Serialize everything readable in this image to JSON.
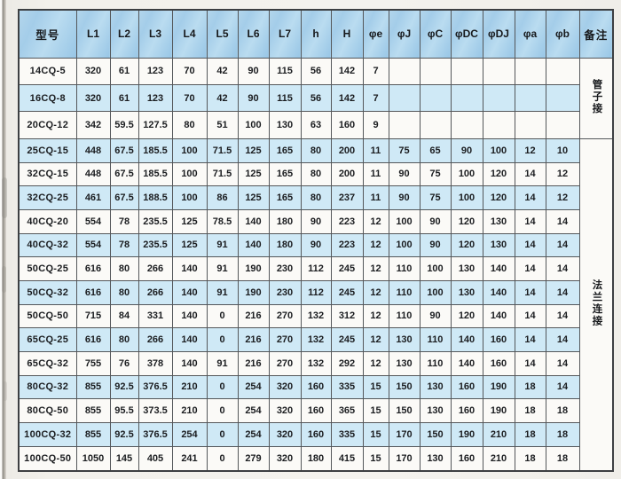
{
  "document": {
    "type": "scanned-specification-table",
    "remark_groups": [
      {
        "text": "管子接",
        "row_start": 0,
        "row_span": 3
      },
      {
        "text": "法兰连接",
        "row_start": 3,
        "row_span": 14
      }
    ]
  },
  "colors": {
    "header_blue": "#a6cfe9",
    "stripe_blue": "#cfe9f6",
    "row_white": "#fbfaf7",
    "grid_line": "#54575a",
    "page_bg": "#f2f0eb"
  },
  "chart_data": {
    "type": "table",
    "title": "",
    "columns": [
      "型号",
      "L1",
      "L2",
      "L3",
      "L4",
      "L5",
      "L6",
      "L7",
      "h",
      "H",
      "φe",
      "φJ",
      "φC",
      "φDC",
      "φDJ",
      "φa",
      "φb",
      "备注"
    ],
    "rows": [
      {
        "model": "14CQ-5",
        "values": [
          "320",
          "61",
          "123",
          "70",
          "42",
          "90",
          "115",
          "56",
          "142",
          "7",
          "",
          "",
          "",
          "",
          "",
          ""
        ]
      },
      {
        "model": "16CQ-8",
        "values": [
          "320",
          "61",
          "123",
          "70",
          "42",
          "90",
          "115",
          "56",
          "142",
          "7",
          "",
          "",
          "",
          "",
          "",
          ""
        ]
      },
      {
        "model": "20CQ-12",
        "values": [
          "342",
          "59.5",
          "127.5",
          "80",
          "51",
          "100",
          "130",
          "63",
          "160",
          "9",
          "",
          "",
          "",
          "",
          "",
          ""
        ]
      },
      {
        "model": "25CQ-15",
        "values": [
          "448",
          "67.5",
          "185.5",
          "100",
          "71.5",
          "125",
          "165",
          "80",
          "200",
          "11",
          "75",
          "65",
          "90",
          "100",
          "12",
          "10"
        ]
      },
      {
        "model": "32CQ-15",
        "values": [
          "448",
          "67.5",
          "185.5",
          "100",
          "71.5",
          "125",
          "165",
          "80",
          "200",
          "11",
          "90",
          "75",
          "100",
          "120",
          "14",
          "12"
        ]
      },
      {
        "model": "32CQ-25",
        "values": [
          "461",
          "67.5",
          "188.5",
          "100",
          "86",
          "125",
          "165",
          "80",
          "237",
          "11",
          "90",
          "75",
          "100",
          "120",
          "14",
          "12"
        ]
      },
      {
        "model": "40CQ-20",
        "values": [
          "554",
          "78",
          "235.5",
          "125",
          "78.5",
          "140",
          "180",
          "90",
          "223",
          "12",
          "100",
          "90",
          "120",
          "130",
          "14",
          "14"
        ]
      },
      {
        "model": "40CQ-32",
        "values": [
          "554",
          "78",
          "235.5",
          "125",
          "91",
          "140",
          "180",
          "90",
          "223",
          "12",
          "100",
          "90",
          "120",
          "130",
          "14",
          "14"
        ]
      },
      {
        "model": "50CQ-25",
        "values": [
          "616",
          "80",
          "266",
          "140",
          "91",
          "190",
          "230",
          "112",
          "245",
          "12",
          "110",
          "100",
          "130",
          "140",
          "14",
          "14"
        ]
      },
      {
        "model": "50CQ-32",
        "values": [
          "616",
          "80",
          "266",
          "140",
          "91",
          "190",
          "230",
          "112",
          "245",
          "12",
          "110",
          "100",
          "130",
          "140",
          "14",
          "14"
        ]
      },
      {
        "model": "50CQ-50",
        "values": [
          "715",
          "84",
          "331",
          "140",
          "0",
          "216",
          "270",
          "132",
          "312",
          "12",
          "110",
          "90",
          "120",
          "140",
          "14",
          "14"
        ]
      },
      {
        "model": "65CQ-25",
        "values": [
          "616",
          "80",
          "266",
          "140",
          "0",
          "216",
          "270",
          "132",
          "245",
          "12",
          "130",
          "110",
          "140",
          "160",
          "14",
          "14"
        ]
      },
      {
        "model": "65CQ-32",
        "values": [
          "755",
          "76",
          "378",
          "140",
          "91",
          "216",
          "270",
          "132",
          "292",
          "12",
          "130",
          "110",
          "140",
          "160",
          "14",
          "14"
        ]
      },
      {
        "model": "80CQ-32",
        "values": [
          "855",
          "92.5",
          "376.5",
          "210",
          "0",
          "254",
          "320",
          "160",
          "335",
          "15",
          "150",
          "130",
          "160",
          "190",
          "18",
          "14"
        ]
      },
      {
        "model": "80CQ-50",
        "values": [
          "855",
          "95.5",
          "373.5",
          "210",
          "0",
          "254",
          "320",
          "160",
          "365",
          "15",
          "150",
          "130",
          "160",
          "190",
          "18",
          "18"
        ]
      },
      {
        "model": "100CQ-32",
        "values": [
          "855",
          "92.5",
          "376.5",
          "254",
          "0",
          "254",
          "320",
          "160",
          "335",
          "15",
          "170",
          "150",
          "190",
          "210",
          "18",
          "18"
        ]
      },
      {
        "model": "100CQ-50",
        "values": [
          "1050",
          "145",
          "405",
          "241",
          "0",
          "279",
          "320",
          "180",
          "415",
          "15",
          "170",
          "130",
          "160",
          "210",
          "18",
          "18"
        ]
      }
    ]
  }
}
